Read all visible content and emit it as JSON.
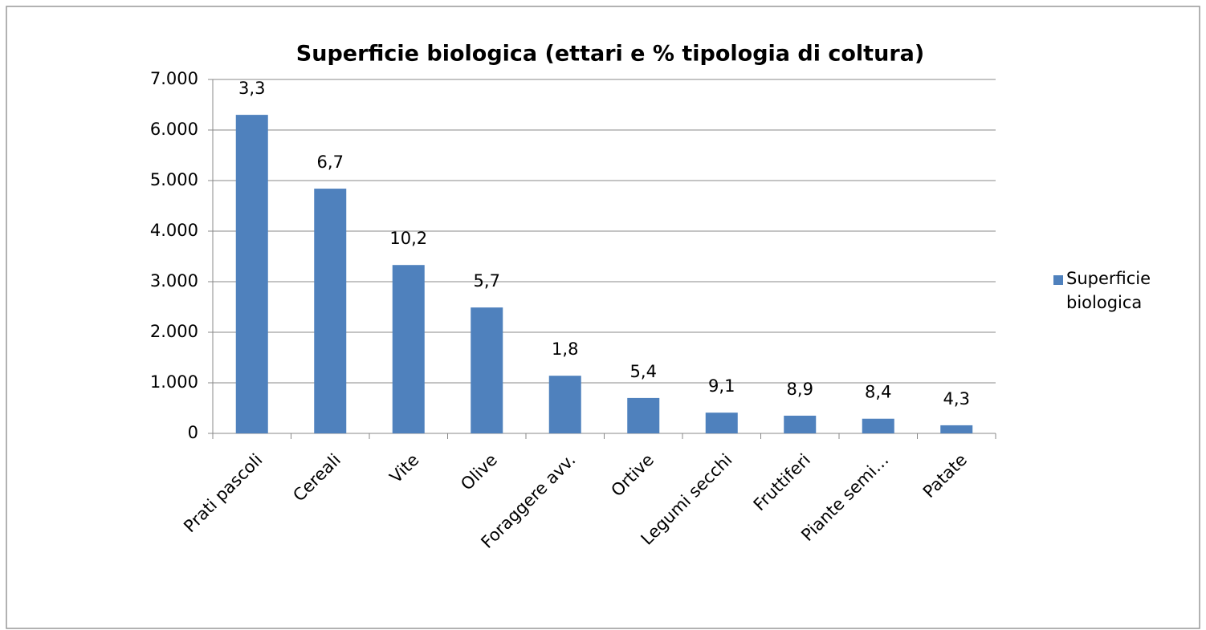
{
  "chart_data": {
    "type": "bar",
    "title": "Superficie biologica (ettari e % tipologia di coltura)",
    "categories": [
      "Prati pascoli",
      "Cereali",
      "Vite",
      "Olive",
      "Foraggere avv.",
      "Ortive",
      "Legumi secchi",
      "Fruttiferi",
      "Piante semi…",
      "Patate"
    ],
    "series": [
      {
        "name": "Superficie biologica",
        "color": "#4f81bd",
        "values": [
          6300,
          4840,
          3330,
          2490,
          1140,
          700,
          410,
          350,
          290,
          160
        ]
      }
    ],
    "annotations": [
      "3,3",
      "6,7",
      "10,2",
      "5,7",
      "1,8",
      "5,4",
      "9,1",
      "8,9",
      "8,4",
      "4,3"
    ],
    "ylim": [
      0,
      7000
    ],
    "yticks": [
      0,
      {
        "value": 1000,
        "label": "1.000"
      },
      {
        "value": 2000,
        "label": "2.000"
      },
      {
        "value": 3000,
        "label": "3.000"
      },
      {
        "value": 4000,
        "label": "4.000"
      },
      {
        "value": 5000,
        "label": "5.000"
      },
      {
        "value": 6000,
        "label": "6.000"
      },
      {
        "value": 7000,
        "label": "7.000"
      }
    ],
    "grid": true,
    "legend": "right"
  }
}
